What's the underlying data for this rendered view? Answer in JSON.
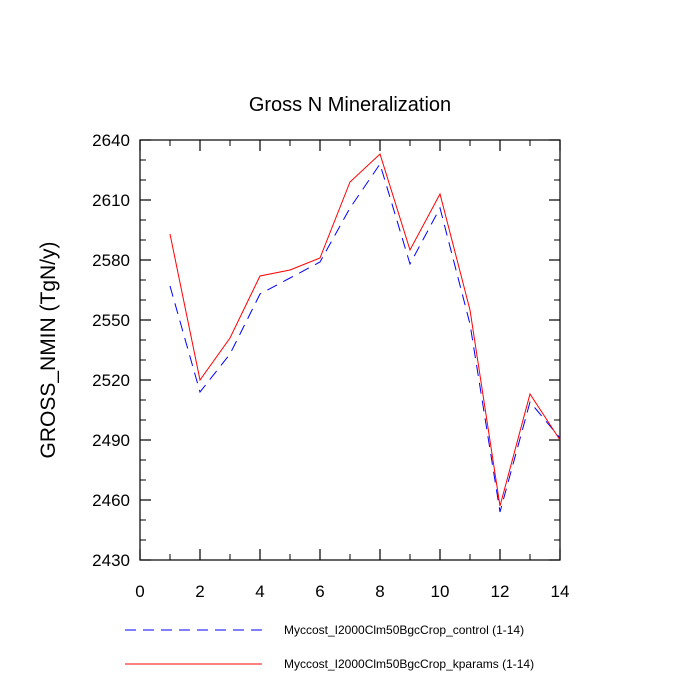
{
  "chart_data": {
    "type": "line",
    "title": "Gross N Mineralization",
    "ylabel": "GROSS_NMIN  (TgN/y)",
    "xlabel": "",
    "xlim": [
      0,
      14
    ],
    "ylim": [
      2430,
      2640
    ],
    "x_ticks": [
      0,
      2,
      4,
      6,
      8,
      10,
      12,
      14
    ],
    "y_ticks": [
      2430,
      2460,
      2490,
      2520,
      2550,
      2580,
      2610,
      2640
    ],
    "x_tick_labels": [
      "0",
      "2",
      "4",
      "6",
      "8",
      "10",
      "12",
      "14"
    ],
    "y_tick_labels": [
      "2430",
      "2460",
      "2490",
      "2520",
      "2550",
      "2580",
      "2610",
      "2640"
    ],
    "legend_position": "bottom",
    "series": [
      {
        "name": "Myccost_I2000Clm50BgcCrop_control (1-14)",
        "color": "#0000ff",
        "dash": "dashed",
        "x": [
          1,
          2,
          3,
          4,
          5,
          6,
          7,
          8,
          9,
          10,
          11,
          12,
          13,
          14
        ],
        "values": [
          2567,
          2514,
          2533,
          2563,
          2571,
          2579,
          2606,
          2628,
          2578,
          2606,
          2548,
          2454,
          2509,
          2491
        ]
      },
      {
        "name": "Myccost_I2000Clm50BgcCrop_kparams (1-14)",
        "color": "#ff0000",
        "dash": "solid",
        "x": [
          1,
          2,
          3,
          4,
          5,
          6,
          7,
          8,
          9,
          10,
          11,
          12,
          13,
          14
        ],
        "values": [
          2593,
          2520,
          2541,
          2572,
          2575,
          2581,
          2619,
          2633,
          2585,
          2613,
          2555,
          2457,
          2513,
          2490
        ]
      }
    ]
  }
}
